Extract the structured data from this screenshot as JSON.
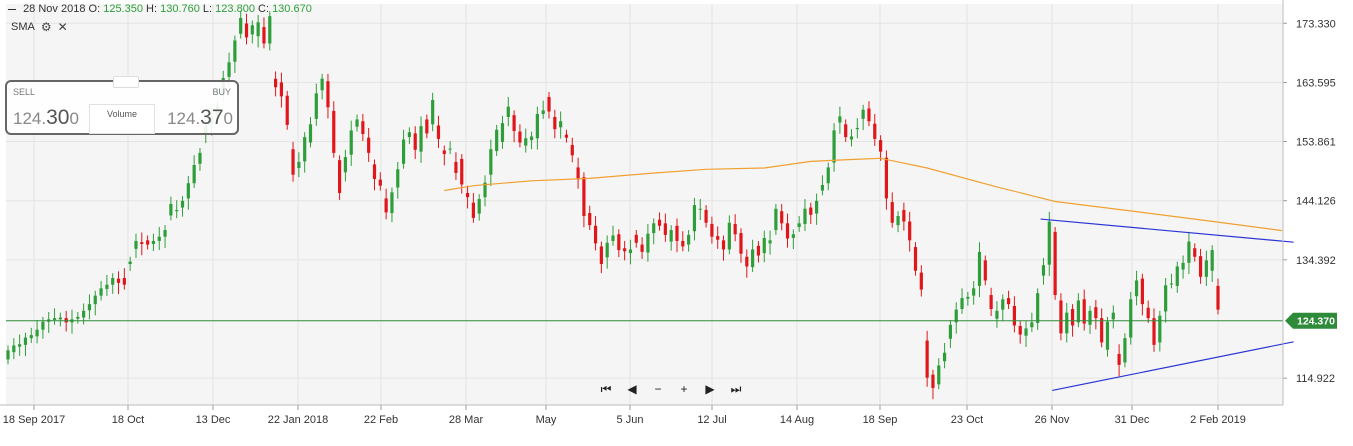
{
  "header": {
    "date": "28 Nov 2018",
    "o_label": "O:",
    "o_value": "125.350",
    "h_label": "H:",
    "h_value": "130.760",
    "l_label": "L:",
    "l_value": "123.800",
    "c_label": "C:",
    "c_value": "130.670"
  },
  "indicator": {
    "label": "SMA",
    "settings_icon": "gear-icon",
    "close_icon": "close-icon",
    "close_glyph": "✕"
  },
  "trade_widget": {
    "sell_label": "SELL",
    "buy_label": "BUY",
    "sell_main": "124.",
    "sell_big": "30",
    "sell_small": "0",
    "buy_main": "124.",
    "buy_big": "37",
    "buy_small": "0",
    "volume_label": "Volume"
  },
  "navigation": {
    "first": "⏮",
    "prev": "◀",
    "zoom_out": "−",
    "zoom_in": "+",
    "next": "▶",
    "last": "⏭"
  },
  "colors": {
    "up": "#2e9e3a",
    "down": "#e0161a",
    "sma": "#f0a030",
    "trendline": "#2b35d6",
    "price_line": "#2e8b3a",
    "badge": "#2e8b3a",
    "grid": "#e4e4e4",
    "background": "#f5f5f5"
  },
  "chart_data": {
    "type": "candlestick",
    "ylim": [
      110.5,
      176.5
    ],
    "y_ticks": [
      "173.330",
      "163.595",
      "153.861",
      "144.126",
      "134.392",
      "114.922"
    ],
    "x_ticks": [
      "18 Sep 2017",
      "18 Oct",
      "13 Dec",
      "22 Jan 2018",
      "22 Feb",
      "28 Mar",
      "May",
      "5 Jun",
      "12 Jul",
      "14 Aug",
      "18 Sep",
      "23 Oct",
      "26 Nov",
      "31 Dec",
      "2 Feb 2019"
    ],
    "current_price": 124.37,
    "current_price_label": "124.370",
    "candles": [
      [
        118.0,
        119.5
      ],
      [
        119.2,
        120.3
      ],
      [
        120.1,
        120.5
      ],
      [
        120.4,
        121.6
      ],
      [
        121.5,
        122.0
      ],
      [
        121.8,
        122.9
      ],
      [
        122.9,
        124.2
      ],
      [
        124.2,
        124.6
      ],
      [
        124.5,
        124.8
      ],
      [
        124.6,
        124.9
      ],
      [
        124.8,
        124.1
      ],
      [
        124.1,
        124.6
      ],
      [
        124.7,
        125.0
      ],
      [
        124.9,
        126.0
      ],
      [
        126.1,
        127.1
      ],
      [
        127.1,
        128.5
      ],
      [
        128.5,
        129.7
      ],
      [
        129.6,
        130.3
      ],
      [
        130.3,
        131.4
      ],
      [
        131.3,
        130.6
      ],
      [
        131.4,
        130.3
      ],
      [
        133.7,
        134.1
      ],
      [
        136.2,
        137.5
      ],
      [
        137.3,
        137.0
      ],
      [
        137.6,
        136.9
      ],
      [
        137.0,
        137.5
      ],
      [
        137.5,
        138.2
      ],
      [
        138.2,
        139.3
      ],
      [
        141.7,
        143.6
      ],
      [
        142.4,
        142.6
      ],
      [
        143.0,
        144.1
      ],
      [
        144.5,
        147.0
      ],
      [
        147.0,
        150.0
      ],
      [
        150.2,
        152.0
      ],
      [
        155.1,
        156.4
      ],
      [
        156.7,
        158.0
      ],
      [
        158.0,
        159.8
      ],
      [
        161.5,
        164.3
      ],
      [
        164.5,
        166.9
      ],
      [
        167.0,
        170.5
      ],
      [
        171.6,
        174.2
      ],
      [
        173.3,
        171.0
      ],
      [
        171.5,
        173.0
      ],
      [
        171.2,
        173.5
      ],
      [
        172.7,
        170.0
      ],
      [
        170.0,
        174.5
      ],
      [
        164.2,
        162.8
      ],
      [
        163.6,
        161.3
      ],
      [
        161.4,
        156.6
      ],
      [
        152.6,
        148.4
      ],
      [
        149.5,
        150.5
      ],
      [
        150.6,
        154.6
      ],
      [
        153.7,
        156.7
      ],
      [
        157.6,
        161.8
      ],
      [
        162.3,
        164.2
      ],
      [
        163.8,
        159.5
      ],
      [
        158.9,
        152.0
      ],
      [
        150.8,
        145.4
      ],
      [
        148.8,
        151.3
      ],
      [
        151.7,
        155.7
      ],
      [
        156.3,
        157.5
      ],
      [
        157.2,
        155.1
      ],
      [
        154.5,
        152.0
      ],
      [
        150.1,
        147.7
      ],
      [
        147.6,
        146.6
      ],
      [
        144.5,
        142.2
      ],
      [
        142.1,
        145.5
      ],
      [
        146.3,
        149.3
      ],
      [
        150.2,
        154.2
      ],
      [
        154.6,
        155.4
      ],
      [
        155.2,
        152.5
      ],
      [
        152.2,
        156.4
      ],
      [
        157.5,
        155.2
      ],
      [
        156.7,
        160.7
      ],
      [
        156.5,
        154.3
      ],
      [
        152.4,
        151.8
      ],
      [
        152.6,
        152.7
      ],
      [
        150.5,
        148.7
      ],
      [
        151.0,
        146.8
      ],
      [
        145.4,
        144.7
      ],
      [
        143.8,
        141.3
      ],
      [
        142.0,
        144.4
      ],
      [
        144.7,
        147.1
      ],
      [
        148.4,
        152.6
      ],
      [
        152.3,
        155.8
      ],
      [
        153.8,
        156.9
      ],
      [
        157.9,
        159.6
      ],
      [
        158.2,
        155.6
      ],
      [
        155.5,
        153.7
      ],
      [
        153.2,
        154.4
      ],
      [
        154.1,
        154.7
      ],
      [
        154.4,
        158.4
      ],
      [
        158.4,
        159.0
      ],
      [
        161.2,
        158.8
      ],
      [
        157.9,
        155.9
      ],
      [
        156.2,
        157.2
      ],
      [
        155.0,
        154.5
      ],
      [
        153.3,
        151.6
      ],
      [
        149.6,
        147.6
      ],
      [
        148.0,
        141.6
      ],
      [
        142.1,
        140.1
      ],
      [
        140.0,
        137.1
      ],
      [
        136.6,
        133.7
      ],
      [
        134.8,
        137.2
      ],
      [
        137.5,
        138.4
      ],
      [
        138.6,
        136.0
      ],
      [
        136.3,
        135.8
      ],
      [
        135.5,
        136.1
      ],
      [
        138.5,
        137.2
      ],
      [
        136.9,
        135.7
      ],
      [
        135.6,
        138.7
      ],
      [
        138.8,
        140.4
      ],
      [
        141.0,
        140.0
      ],
      [
        140.4,
        138.5
      ],
      [
        137.4,
        139.3
      ],
      [
        140.0,
        137.5
      ],
      [
        137.5,
        136.6
      ],
      [
        136.9,
        138.5
      ],
      [
        139.1,
        143.4
      ],
      [
        142.8,
        142.8
      ],
      [
        142.6,
        140.5
      ],
      [
        140.3,
        138.2
      ],
      [
        138.3,
        137.7
      ],
      [
        137.6,
        136.1
      ],
      [
        136.1,
        140.5
      ],
      [
        140.3,
        138.6
      ],
      [
        138.8,
        135.4
      ],
      [
        134.9,
        133.3
      ],
      [
        133.2,
        136.1
      ],
      [
        136.7,
        135.1
      ],
      [
        135.5,
        138.0
      ],
      [
        137.1,
        137.6
      ],
      [
        139.3,
        142.8
      ],
      [
        142.4,
        140.4
      ],
      [
        140.4,
        137.9
      ],
      [
        138.0,
        138.6
      ],
      [
        139.8,
        140.4
      ],
      [
        140.3,
        142.8
      ],
      [
        143.0,
        141.8
      ],
      [
        142.0,
        144.1
      ],
      [
        145.8,
        146.7
      ],
      [
        147.0,
        149.6
      ],
      [
        150.4,
        155.7
      ],
      [
        157.0,
        158.0
      ],
      [
        156.7,
        154.6
      ],
      [
        154.2,
        154.7
      ],
      [
        155.9,
        156.1
      ],
      [
        157.6,
        159.1
      ],
      [
        159.3,
        157.2
      ],
      [
        156.8,
        154.3
      ],
      [
        154.1,
        152.2
      ],
      [
        151.2,
        144.5
      ],
      [
        143.9,
        140.5
      ],
      [
        140.1,
        141.6
      ],
      [
        142.6,
        140.7
      ],
      [
        140.7,
        137.6
      ],
      [
        136.5,
        132.6
      ],
      [
        132.3,
        129.5
      ],
      [
        121.1,
        115.0
      ],
      [
        115.5,
        113.3
      ],
      [
        113.9,
        117.0
      ],
      [
        117.7,
        119.1
      ],
      [
        121.4,
        123.7
      ],
      [
        124.1,
        126.2
      ],
      [
        126.3,
        128.1
      ],
      [
        128.0,
        128.3
      ],
      [
        128.5,
        129.7
      ],
      [
        130.1,
        135.7
      ],
      [
        134.3,
        131.0
      ],
      [
        128.6,
        126.3
      ],
      [
        124.7,
        126.0
      ],
      [
        126.2,
        127.9
      ],
      [
        128.1,
        127.1
      ],
      [
        126.8,
        123.6
      ],
      [
        123.5,
        122.1
      ],
      [
        121.9,
        123.1
      ],
      [
        123.3,
        124.1
      ],
      [
        124.0,
        128.9
      ],
      [
        131.8,
        133.5
      ],
      [
        133.6,
        140.7
      ],
      [
        139.0,
        128.6
      ],
      [
        127.7,
        122.3
      ],
      [
        122.3,
        125.7
      ],
      [
        126.3,
        123.6
      ],
      [
        124.1,
        127.7
      ],
      [
        127.9,
        123.9
      ],
      [
        123.7,
        126.0
      ],
      [
        126.6,
        124.8
      ],
      [
        124.8,
        120.8
      ],
      [
        119.6,
        124.2
      ],
      [
        124.6,
        125.7
      ],
      [
        118.9,
        117.1
      ],
      [
        117.5,
        121.5
      ],
      [
        121.6,
        127.9
      ],
      [
        128.4,
        131.0
      ],
      [
        131.3,
        127.1
      ],
      [
        126.5,
        124.8
      ],
      [
        124.8,
        120.4
      ],
      [
        120.8,
        125.2
      ],
      [
        125.9,
        130.2
      ],
      [
        130.5,
        130.5
      ],
      [
        130.1,
        133.3
      ],
      [
        132.8,
        133.9
      ],
      [
        133.9,
        137.4
      ],
      [
        136.3,
        134.9
      ],
      [
        135.0,
        131.6
      ],
      [
        131.6,
        134.3
      ],
      [
        132.6,
        136.0
      ],
      [
        130.1,
        126.2
      ]
    ],
    "sma": [
      [
        75,
        145.8
      ],
      [
        80,
        146.6
      ],
      [
        90,
        147.4
      ],
      [
        100,
        147.8
      ],
      [
        110,
        148.6
      ],
      [
        120,
        149.3
      ],
      [
        130,
        149.5
      ],
      [
        138,
        150.6
      ],
      [
        145,
        150.9
      ],
      [
        150,
        151.1
      ],
      [
        158,
        149.5
      ],
      [
        170,
        146.4
      ],
      [
        180,
        144.0
      ],
      [
        195,
        142.2
      ],
      [
        208,
        140.6
      ],
      [
        219,
        139.2
      ]
    ],
    "trendlines": [
      {
        "from": [
          177.5,
          141.1
        ],
        "to": [
          221.0,
          137.3
        ]
      },
      {
        "from": [
          179.5,
          112.9
        ],
        "to": [
          221.0,
          120.9
        ]
      }
    ]
  }
}
